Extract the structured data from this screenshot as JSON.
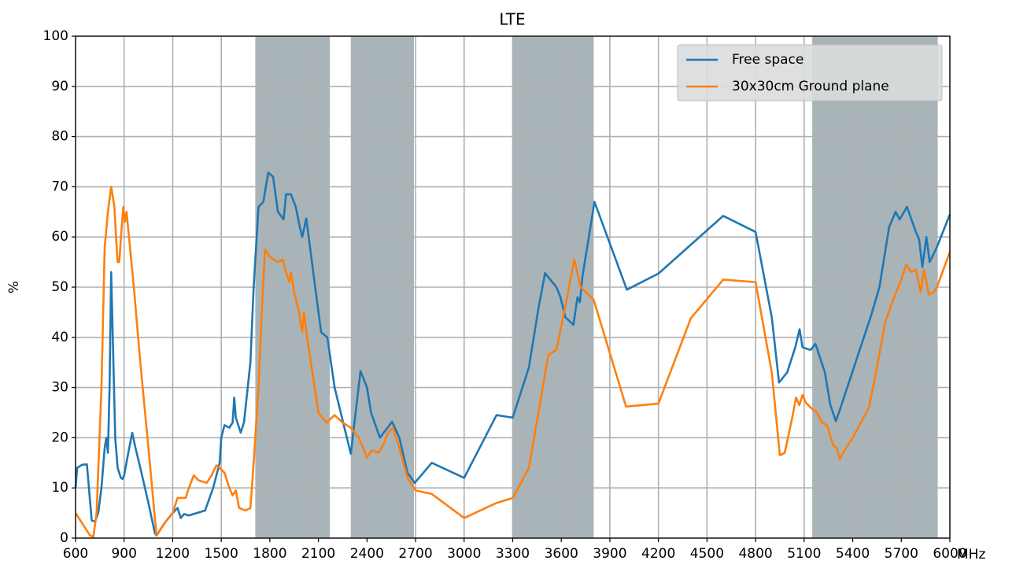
{
  "chart_data": {
    "type": "line",
    "title": "LTE",
    "ylabel": "%",
    "xlabel": "MHz",
    "xlim": [
      600,
      6000
    ],
    "xticks": [
      600,
      900,
      1200,
      1500,
      1800,
      2100,
      2400,
      2700,
      3000,
      3300,
      3600,
      3900,
      4200,
      4500,
      4800,
      5100,
      5400,
      5700,
      6000
    ],
    "ylim": [
      0,
      100
    ],
    "yticks": [
      0,
      10,
      20,
      30,
      40,
      50,
      60,
      70,
      80,
      90,
      100
    ],
    "grid": true,
    "legend": "upper right",
    "bands": [
      [
        1710,
        2170
      ],
      [
        2300,
        2690
      ],
      [
        3300,
        3800
      ],
      [
        5150,
        5925
      ]
    ],
    "band_color": "#a9b4b8",
    "series": [
      {
        "name": "Free space",
        "color": "#1f77b4",
        "x": [
          600,
          610,
          640,
          670,
          700,
          720,
          740,
          760,
          780,
          790,
          800,
          810,
          820,
          830,
          845,
          860,
          880,
          890,
          900,
          920,
          950,
          970,
          1000,
          1050,
          1090,
          1100,
          1150,
          1200,
          1230,
          1250,
          1270,
          1300,
          1400,
          1450,
          1490,
          1500,
          1520,
          1550,
          1570,
          1580,
          1590,
          1620,
          1640,
          1680,
          1700,
          1730,
          1760,
          1770,
          1790,
          1820,
          1850,
          1885,
          1900,
          1930,
          1960,
          1985,
          2000,
          2025,
          2060,
          2080,
          2117,
          2155,
          2200,
          2300,
          2360,
          2400,
          2425,
          2480,
          2555,
          2600,
          2650,
          2695,
          2800,
          3000,
          3200,
          3300,
          3400,
          3460,
          3500,
          3570,
          3595,
          3625,
          3675,
          3700,
          3715,
          3730,
          3805,
          4005,
          4200,
          4600,
          4800,
          4900,
          4945,
          4995,
          5045,
          5072,
          5090,
          5140,
          5170,
          5228,
          5262,
          5296,
          5325,
          5515,
          5565,
          5625,
          5665,
          5690,
          5735,
          5790,
          5810,
          5830,
          5855,
          5875,
          5920,
          6000
        ],
        "values": [
          10,
          14,
          14.6,
          14.7,
          3.5,
          3.3,
          5,
          10,
          18,
          20,
          17,
          30,
          53,
          40,
          20,
          14,
          12,
          11.8,
          12.5,
          16,
          21,
          18,
          14,
          7,
          1,
          0.5,
          3,
          5,
          6,
          4,
          4.8,
          4.5,
          5.5,
          10,
          15,
          20,
          22.5,
          22,
          23,
          28,
          24,
          21,
          23,
          35,
          50,
          66,
          67,
          69,
          72.8,
          72,
          65,
          63.5,
          68.5,
          68.5,
          66,
          62,
          60,
          63.7,
          55,
          50,
          41,
          40,
          30,
          16.8,
          33.3,
          30,
          25,
          20,
          23.2,
          20,
          13,
          11,
          15,
          12,
          24.5,
          24,
          34,
          46,
          52.8,
          50,
          48,
          44,
          42.5,
          48,
          47,
          52,
          67,
          49.5,
          52.7,
          64.2,
          61,
          44,
          31,
          33,
          38,
          41.6,
          38,
          37.5,
          38.7,
          33,
          26.5,
          23.3,
          26,
          44.5,
          50,
          62,
          65,
          63.5,
          66,
          61,
          59.5,
          54,
          60,
          55,
          58,
          64.5
        ]
      },
      {
        "name": "30x30cm Ground plane",
        "color": "#ff7f0e",
        "x": [
          600,
          650,
          690,
          710,
          730,
          760,
          780,
          800,
          820,
          840,
          850,
          860,
          870,
          885,
          895,
          905,
          915,
          930,
          960,
          1000,
          1050,
          1100,
          1150,
          1200,
          1230,
          1260,
          1280,
          1300,
          1330,
          1360,
          1410,
          1440,
          1470,
          1490,
          1520,
          1550,
          1570,
          1590,
          1610,
          1650,
          1680,
          1700,
          1730,
          1750,
          1770,
          1800,
          1850,
          1880,
          1900,
          1920,
          1930,
          1950,
          1980,
          2000,
          2010,
          2030,
          2100,
          2150,
          2200,
          2250,
          2300,
          2350,
          2400,
          2430,
          2470,
          2500,
          2530,
          2560,
          2600,
          2650,
          2700,
          2800,
          3000,
          3200,
          3300,
          3400,
          3480,
          3520,
          3570,
          3630,
          3680,
          3720,
          3800,
          4000,
          4200,
          4400,
          4600,
          4800,
          4900,
          4950,
          4980,
          5020,
          5050,
          5070,
          5090,
          5110,
          5140,
          5180,
          5210,
          5240,
          5280,
          5300,
          5320,
          5340,
          5400,
          5450,
          5500,
          5550,
          5600,
          5650,
          5700,
          5730,
          5760,
          5790,
          5820,
          5840,
          5870,
          5900,
          5920,
          6000
        ],
        "values": [
          5,
          2.5,
          0.5,
          0.3,
          5,
          30,
          58,
          65,
          70,
          66,
          60,
          55,
          55,
          62,
          66,
          63,
          65,
          60,
          50,
          35,
          18,
          0.5,
          3,
          5,
          8,
          8,
          8,
          10,
          12.5,
          11.5,
          11,
          12.5,
          14.5,
          14,
          13,
          10,
          8.5,
          9.5,
          6,
          5.5,
          6,
          15,
          30,
          45,
          57.5,
          56,
          55,
          55.5,
          53,
          51,
          53,
          49,
          45,
          41,
          45,
          40,
          25,
          23,
          24.5,
          23,
          22,
          20,
          16,
          17.5,
          17,
          18.5,
          21,
          22,
          18,
          12,
          9.5,
          8.8,
          4,
          7,
          8,
          14,
          29,
          36.5,
          37.5,
          47,
          55.5,
          50,
          47.5,
          26.2,
          26.8,
          43.8,
          51.5,
          51,
          33,
          16.5,
          17,
          23,
          28,
          26.5,
          28.5,
          27,
          26,
          25,
          23,
          22.5,
          18.5,
          18,
          15.7,
          17,
          20,
          23,
          26,
          34,
          43,
          47.5,
          51.5,
          54.5,
          53,
          53.5,
          49,
          53.5,
          48.5,
          49,
          50,
          57
        ]
      }
    ]
  }
}
